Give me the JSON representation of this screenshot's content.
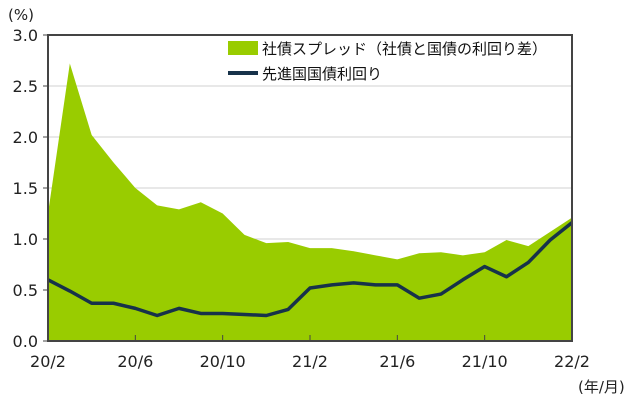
{
  "chart_data": {
    "type": "area",
    "y_unit_label": "(%)",
    "x_unit_label": "(年/月)",
    "ylim": [
      0,
      3.0
    ],
    "yticks": [
      "0.0",
      "0.5",
      "1.0",
      "1.5",
      "2.0",
      "2.5",
      "3.0"
    ],
    "grid": true,
    "legend_position": "top",
    "categories": [
      "20/2",
      "20/3",
      "20/4",
      "20/5",
      "20/6",
      "20/7",
      "20/8",
      "20/9",
      "20/10",
      "20/11",
      "20/12",
      "21/1",
      "21/2",
      "21/3",
      "21/4",
      "21/5",
      "21/6",
      "21/7",
      "21/8",
      "21/9",
      "21/10",
      "21/11",
      "21/12",
      "22/1",
      "22/2"
    ],
    "xtick_labels": [
      "20/2",
      "20/6",
      "20/10",
      "21/2",
      "21/6",
      "21/10",
      "22/2"
    ],
    "series": [
      {
        "name": "社債スプレッド（社債と国債の利回り差）",
        "type": "stacked-area",
        "color": "#99cc00",
        "values": [
          0.65,
          2.23,
          1.65,
          1.38,
          1.18,
          1.08,
          0.97,
          1.09,
          0.98,
          0.78,
          0.71,
          0.66,
          0.39,
          0.36,
          0.31,
          0.29,
          0.25,
          0.44,
          0.41,
          0.24,
          0.14,
          0.36,
          0.16,
          0.08,
          0.05
        ]
      },
      {
        "name": "先進国国債利回り",
        "type": "line",
        "color": "#17324a",
        "values": [
          0.6,
          0.49,
          0.37,
          0.37,
          0.32,
          0.25,
          0.32,
          0.27,
          0.27,
          0.26,
          0.25,
          0.31,
          0.52,
          0.55,
          0.57,
          0.55,
          0.55,
          0.42,
          0.46,
          0.6,
          0.73,
          0.63,
          0.77,
          0.99,
          1.16
        ]
      }
    ]
  }
}
